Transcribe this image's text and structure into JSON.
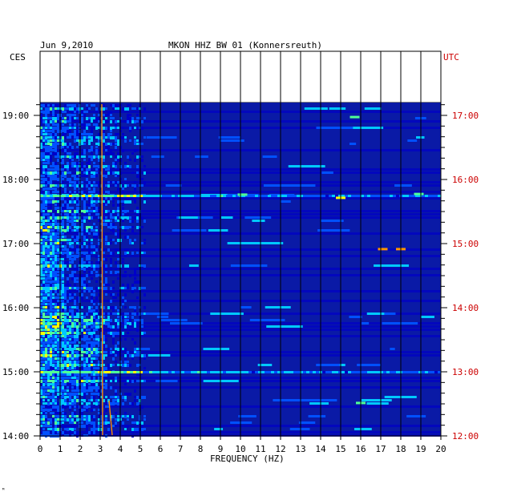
{
  "chart_data": {
    "type": "heatmap",
    "header": {
      "date": "Jun 9,2010",
      "station": "MKON HHZ BW 01 (Konnersreuth)"
    },
    "left_axis_label": "CES",
    "right_axis_label": "UTC",
    "xlabel": "FREQUENCY (HZ)",
    "xlim": [
      0,
      20
    ],
    "x_ticks": [
      "0",
      "1",
      "2",
      "3",
      "4",
      "5",
      "6",
      "7",
      "8",
      "9",
      "10",
      "11",
      "12",
      "13",
      "14",
      "15",
      "16",
      "17",
      "18",
      "19",
      "20"
    ],
    "left_time_ticks": [
      "19:00",
      "18:00",
      "17:00",
      "16:00",
      "15:00",
      "14:00"
    ],
    "right_time_ticks": [
      "17:00",
      "16:00",
      "15:00",
      "14:00",
      "13:00",
      "12:00"
    ],
    "time_range_local": [
      "14:00",
      "19:12"
    ],
    "footer_mark": "ᴹ",
    "colormap": [
      "#00008c",
      "#0000c8",
      "#0050ff",
      "#00c8ff",
      "#50ff96",
      "#ffff00",
      "#ff9600",
      "#e60000"
    ],
    "features": {
      "persistent_line_hz": 3.1,
      "strong_low_freq_band_hz": [
        0,
        5.2
      ],
      "broad_bursts_local": [
        "15:00",
        "17:45"
      ]
    }
  },
  "colors": {
    "background_field": "#0a1aa6",
    "left_time_labels": "#000000",
    "right_time_labels": "#cc0000",
    "grid": "#000000"
  }
}
